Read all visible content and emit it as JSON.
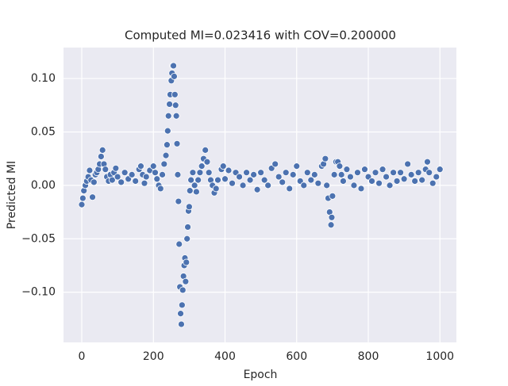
{
  "chart_data": {
    "type": "scatter",
    "title": "Computed MI=0.023416 with COV=0.200000",
    "x_label": "Epoch",
    "y_label": "Predicted MI",
    "color": "#4c72b0",
    "grid": true,
    "xlim": [
      -51,
      1046
    ],
    "xticks": [
      0,
      200,
      400,
      600,
      800,
      1000
    ],
    "ylim": [
      -0.147,
      0.129
    ],
    "yticks": [
      {
        "value": -0.1,
        "label": "−0.10"
      },
      {
        "value": -0.05,
        "label": "−0.05"
      },
      {
        "value": 0,
        "label": "0.00"
      },
      {
        "value": 0.05,
        "label": "0.05"
      },
      {
        "value": 0.1,
        "label": "0.10"
      }
    ],
    "x": [
      0,
      3,
      6,
      10,
      14,
      18,
      22,
      26,
      30,
      34,
      38,
      42,
      46,
      50,
      54,
      58,
      62,
      66,
      70,
      75,
      80,
      85,
      90,
      95,
      100,
      110,
      120,
      130,
      140,
      150,
      160,
      165,
      170,
      175,
      180,
      190,
      200,
      205,
      210,
      215,
      220,
      225,
      230,
      235,
      238,
      240,
      242,
      245,
      247,
      250,
      252,
      254,
      256,
      258,
      260,
      262,
      264,
      266,
      268,
      270,
      272,
      274,
      276,
      278,
      280,
      282,
      284,
      286,
      288,
      290,
      292,
      294,
      296,
      298,
      300,
      302,
      305,
      310,
      315,
      320,
      325,
      330,
      335,
      340,
      345,
      350,
      355,
      360,
      365,
      370,
      375,
      380,
      390,
      395,
      400,
      410,
      420,
      430,
      440,
      450,
      460,
      470,
      480,
      490,
      500,
      510,
      520,
      530,
      540,
      550,
      560,
      570,
      580,
      590,
      600,
      610,
      620,
      630,
      640,
      650,
      660,
      670,
      675,
      680,
      684,
      688,
      692,
      696,
      698,
      700,
      705,
      710,
      715,
      720,
      725,
      730,
      740,
      750,
      760,
      770,
      780,
      790,
      800,
      810,
      820,
      830,
      840,
      850,
      860,
      870,
      880,
      890,
      900,
      910,
      920,
      930,
      940,
      950,
      960,
      965,
      970,
      980,
      990,
      1000
    ],
    "values": [
      -0.018,
      -0.012,
      -0.005,
      0.0,
      0.004,
      0.008,
      0.014,
      0.005,
      -0.011,
      0.003,
      0.01,
      0.012,
      0.015,
      0.02,
      0.027,
      0.033,
      0.02,
      0.015,
      0.008,
      0.004,
      0.01,
      0.005,
      0.012,
      0.016,
      0.008,
      0.003,
      0.012,
      0.006,
      0.01,
      0.004,
      0.015,
      0.018,
      0.01,
      0.002,
      0.008,
      0.014,
      0.018,
      0.012,
      0.006,
      0.0,
      -0.003,
      0.01,
      0.02,
      0.028,
      0.038,
      0.051,
      0.065,
      0.076,
      0.085,
      0.098,
      0.105,
      0.112,
      0.112,
      0.102,
      0.085,
      0.075,
      0.065,
      0.039,
      0.01,
      -0.015,
      -0.055,
      -0.095,
      -0.12,
      -0.13,
      -0.112,
      -0.098,
      -0.085,
      -0.075,
      -0.068,
      -0.09,
      -0.072,
      -0.05,
      -0.039,
      -0.024,
      -0.02,
      -0.005,
      0.005,
      0.012,
      0.0,
      -0.006,
      0.005,
      0.012,
      0.018,
      0.025,
      0.033,
      0.022,
      0.012,
      0.005,
      0.0,
      -0.007,
      -0.003,
      0.005,
      0.015,
      0.018,
      0.006,
      0.014,
      0.002,
      0.012,
      0.008,
      0.0,
      0.012,
      0.005,
      0.01,
      -0.004,
      0.012,
      0.005,
      0.0,
      0.016,
      0.02,
      0.008,
      0.003,
      0.012,
      -0.003,
      0.01,
      0.018,
      0.004,
      0.0,
      0.012,
      0.005,
      0.01,
      0.002,
      0.018,
      0.02,
      0.025,
      0.0,
      -0.012,
      -0.025,
      -0.037,
      -0.03,
      -0.01,
      0.01,
      0.022,
      0.022,
      0.018,
      0.01,
      0.004,
      0.015,
      0.008,
      0.0,
      0.012,
      -0.003,
      0.015,
      0.008,
      0.004,
      0.012,
      0.002,
      0.015,
      0.008,
      0.0,
      0.012,
      0.004,
      0.012,
      0.006,
      0.02,
      0.01,
      0.004,
      0.012,
      0.005,
      0.015,
      0.022,
      0.012,
      0.002,
      0.008,
      0.015
    ]
  }
}
